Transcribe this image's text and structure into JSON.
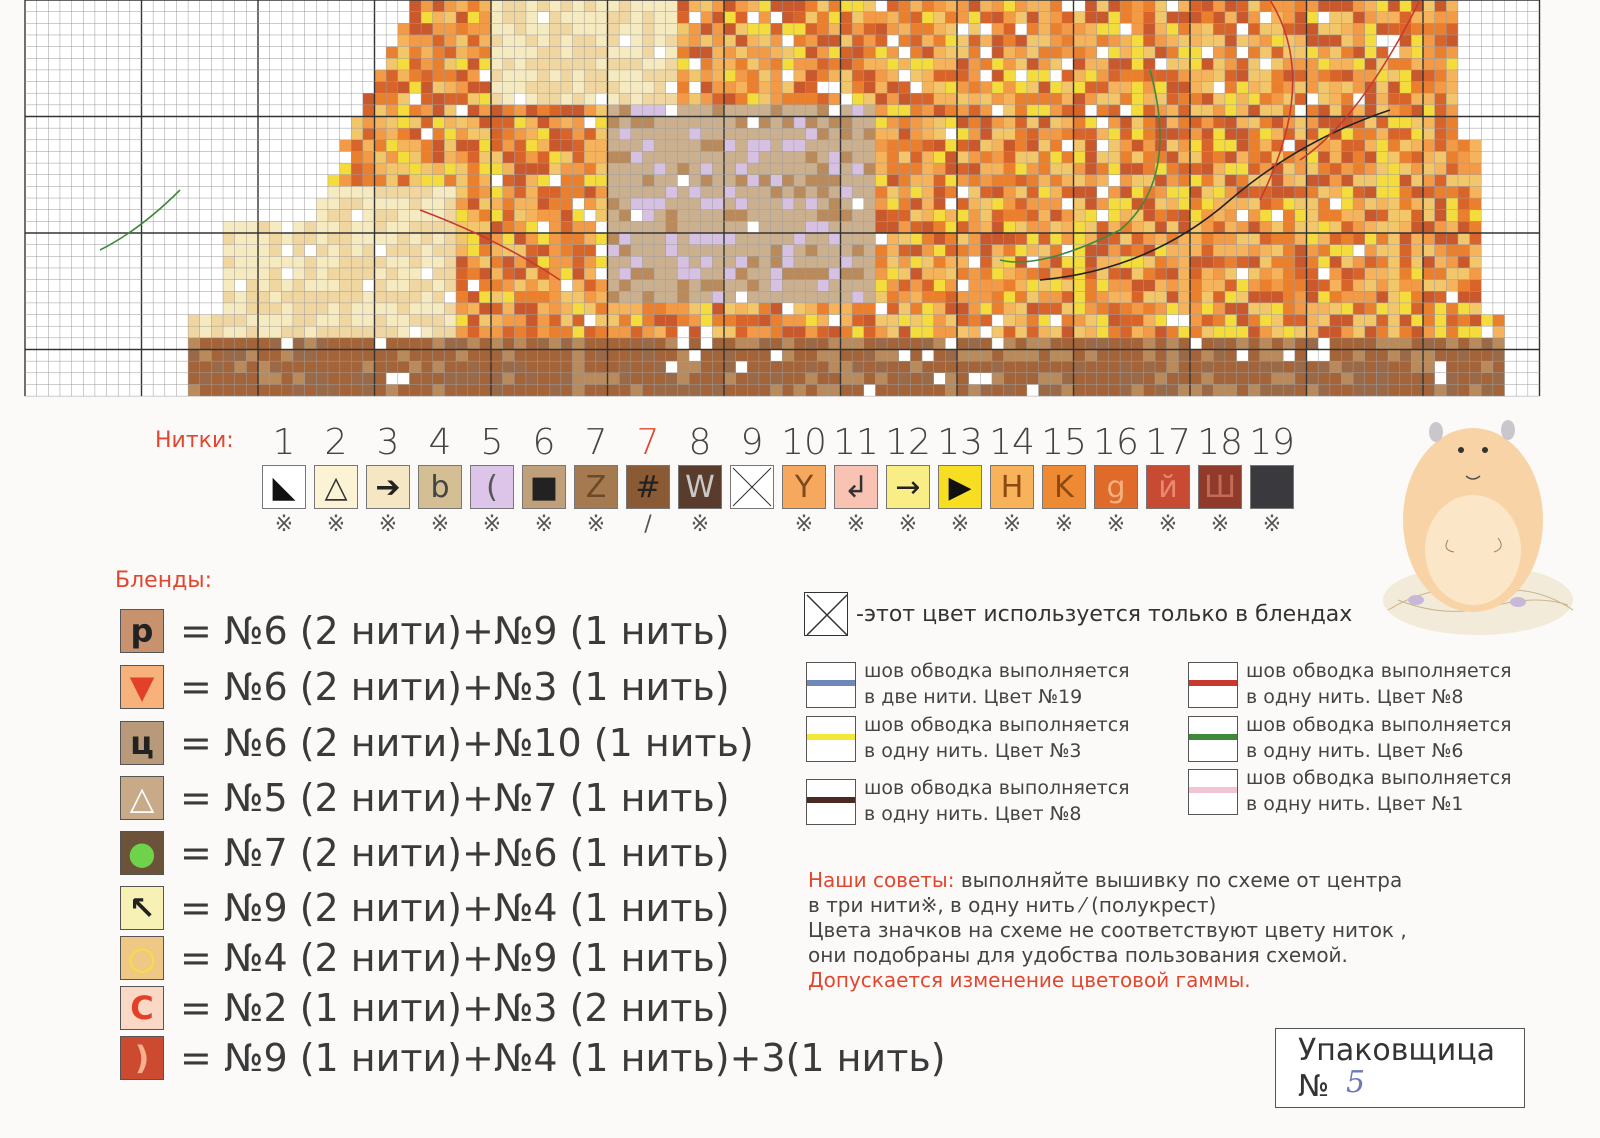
{
  "threads": {
    "label": "Нитки:",
    "items": [
      {
        "num": "1",
        "symbol": "◣",
        "bg": "#ffffff",
        "fg": "#111111",
        "mark": "※",
        "numColor": "#444444"
      },
      {
        "num": "2",
        "symbol": "△",
        "bg": "#fbf3d3",
        "fg": "#333333",
        "mark": "※",
        "numColor": "#444444"
      },
      {
        "num": "3",
        "symbol": "➔",
        "bg": "#f6e7c4",
        "fg": "#222222",
        "mark": "※",
        "numColor": "#444444"
      },
      {
        "num": "4",
        "symbol": "b",
        "bg": "#d4bf94",
        "fg": "#444444",
        "mark": "※",
        "numColor": "#444444"
      },
      {
        "num": "5",
        "symbol": "(",
        "bg": "#dcc5e9",
        "fg": "#555555",
        "mark": "※",
        "numColor": "#444444"
      },
      {
        "num": "6",
        "symbol": "■",
        "bg": "#c0a07a",
        "fg": "#222222",
        "mark": "※",
        "numColor": "#444444"
      },
      {
        "num": "7",
        "symbol": "Z",
        "bg": "#a57a50",
        "fg": "#6b4a2a",
        "mark": "※",
        "numColor": "#444444"
      },
      {
        "num": "7",
        "symbol": "#",
        "bg": "#8a5a35",
        "fg": "#222222",
        "mark": "/",
        "numColor": "#e0472e"
      },
      {
        "num": "8",
        "symbol": "W",
        "bg": "#5a3c2c",
        "fg": "#c9c9c9",
        "mark": "※",
        "numColor": "#444444"
      },
      {
        "num": "9",
        "symbol": "",
        "bg": "#ffffff",
        "fg": "#333333",
        "mark": "",
        "numColor": "#444444"
      },
      {
        "num": "10",
        "symbol": "Y",
        "bg": "#f6a85e",
        "fg": "#7a4a20",
        "mark": "※",
        "numColor": "#444444"
      },
      {
        "num": "11",
        "symbol": "↲",
        "bg": "#f9c3b3",
        "fg": "#333333",
        "mark": "※",
        "numColor": "#444444"
      },
      {
        "num": "12",
        "symbol": "→",
        "bg": "#f9ee86",
        "fg": "#222222",
        "mark": "※",
        "numColor": "#444444"
      },
      {
        "num": "13",
        "symbol": "▶",
        "bg": "#f7de22",
        "fg": "#111111",
        "mark": "※",
        "numColor": "#444444"
      },
      {
        "num": "14",
        "symbol": "H",
        "bg": "#f7b25a",
        "fg": "#8a4a10",
        "mark": "※",
        "numColor": "#444444"
      },
      {
        "num": "15",
        "symbol": "K",
        "bg": "#ee8a34",
        "fg": "#8a4a10",
        "mark": "※",
        "numColor": "#444444"
      },
      {
        "num": "16",
        "symbol": "g",
        "bg": "#df6a2a",
        "fg": "#f3b080",
        "mark": "※",
        "numColor": "#444444"
      },
      {
        "num": "17",
        "symbol": "й",
        "bg": "#c94a32",
        "fg": "#e88a70",
        "mark": "※",
        "numColor": "#444444"
      },
      {
        "num": "18",
        "symbol": "Ш",
        "bg": "#8f3a2a",
        "fg": "#c46a55",
        "mark": "※",
        "numColor": "#444444"
      },
      {
        "num": "19",
        "symbol": "",
        "bg": "#3a3a3e",
        "fg": "#ffffff",
        "mark": "※",
        "numColor": "#444444"
      }
    ]
  },
  "blends": {
    "label": "Бленды:",
    "rows": [
      {
        "symbol": "р",
        "bg": "#c8926e",
        "fg": "#222222",
        "text": "= №6 (2 нити)+№9 (1 нить)"
      },
      {
        "symbol": "▼",
        "bg": "#f6b27a",
        "fg": "#e3402a",
        "text": "= №6 (2 нити)+№3 (1 нить)"
      },
      {
        "symbol": "ц",
        "bg": "#b8997a",
        "fg": "#222222",
        "text": "= №6 (2 нити)+№10 (1 нить)"
      },
      {
        "symbol": "△",
        "bg": "#c8aa88",
        "fg": "#ffffff",
        "text": "= №5 (2 нити)+№7 (1 нить)"
      },
      {
        "symbol": "●",
        "bg": "#6b5238",
        "fg": "#6ed34a",
        "text": "= №7 (2 нити)+№6 (1 нить)"
      },
      {
        "symbol": "↖",
        "bg": "#f8f1b6",
        "fg": "#222222",
        "text": "= №9 (2 нити)+№4 (1 нить)"
      },
      {
        "symbol": "○",
        "bg": "#efc886",
        "fg": "#f6e03a",
        "text": "= №4 (2 нити)+№9 (1 нить)"
      },
      {
        "symbol": "С",
        "bg": "#fad8c6",
        "fg": "#e3402a",
        "text": "= №2 (1 нити)+№3 (2 нить)"
      },
      {
        "symbol": ")",
        "bg": "#cc4a30",
        "fg": "#f6b090",
        "text": "= №9 (1 нити)+№4 (1 нить)+3(1 нить)"
      }
    ]
  },
  "only_blend_note": "-этот цвет используется только в блендах",
  "seams": [
    {
      "color": "#6f86b6",
      "line1": "шов обводка выполняется",
      "line2": "в две нити. Цвет №19"
    },
    {
      "color": "#f5e63a",
      "line1": "шов обводка выполняется",
      "line2": "в одну нить. Цвет №3"
    },
    {
      "color": "#4a2a22",
      "line1": "шов обводка выполняется",
      "line2": "в одну нить. Цвет №8"
    },
    {
      "color": "#c83a30",
      "line1": "шов обводка выполняется",
      "line2": "в одну нить. Цвет №8"
    },
    {
      "color": "#3f8a3a",
      "line1": "шов обводка выполняется",
      "line2": "в одну нить. Цвет №6"
    },
    {
      "color": "#f2c4d4",
      "line1": "шов обводка выполняется",
      "line2": "в одну нить. Цвет №1"
    }
  ],
  "tips": {
    "heading": "Наши советы:",
    "line1_rest": " выполняйте вышивку по схеме от центра",
    "line2": "в три нити※, в одну нить ⁄ (полукрест)",
    "line3": "Цвета значков на схеме не соответствуют цвету ниток ,",
    "line4": " они подобраны для удобства пользования схемой.",
    "line5": "Допускается изменение цветовой гаммы."
  },
  "packer": {
    "title": "Упаковщица",
    "number_label": "№",
    "number_value": "5"
  },
  "chart_palette": [
    "#f29a45",
    "#ea7f2d",
    "#d9642a",
    "#c9582c",
    "#f5b35b",
    "#f2c66a",
    "#f4dc3c",
    "#a4643a",
    "#8e4a2c",
    "#b88a5c",
    "#cbb090",
    "#d6c1e2",
    "#f6eac0",
    "#f0d6a0",
    "#9a6a48"
  ]
}
